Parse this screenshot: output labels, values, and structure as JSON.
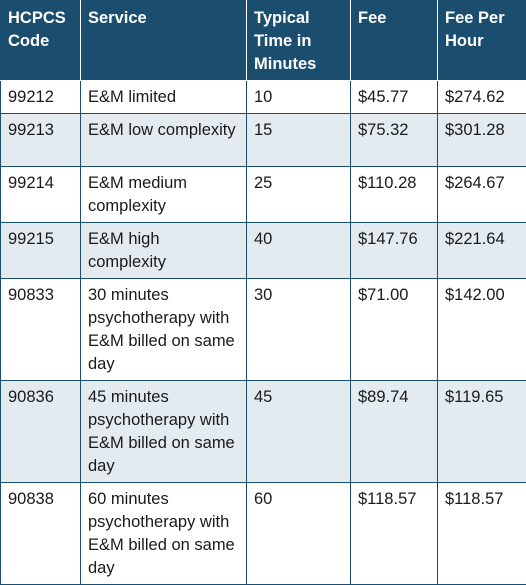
{
  "table": {
    "headers": [
      "HCPCS Code",
      "Service",
      "Typical Time in Minutes",
      "Fee",
      "Fee Per Hour"
    ],
    "rows": [
      [
        "99212",
        "E&M limited",
        "10",
        "$45.77",
        "$274.62"
      ],
      [
        "99213",
        "E&M low complexity",
        "15",
        "$75.32",
        "$301.28"
      ],
      [
        "99214",
        "E&M medium complexity",
        "25",
        "$110.28",
        "$264.67"
      ],
      [
        "99215",
        "E&M high complexity",
        "40",
        "$147.76",
        "$221.64"
      ],
      [
        "90833",
        "30 minutes psychotherapy with E&M billed on same day",
        "30",
        "$71.00",
        "$142.00"
      ],
      [
        "90836",
        "45 minutes psychotherapy with E&M billed on same day",
        "45",
        "$89.74",
        "$119.65"
      ],
      [
        "90838",
        "60 minutes psychotherapy with E&M billed on same day",
        "60",
        "$118.57",
        "$118.57"
      ]
    ]
  }
}
